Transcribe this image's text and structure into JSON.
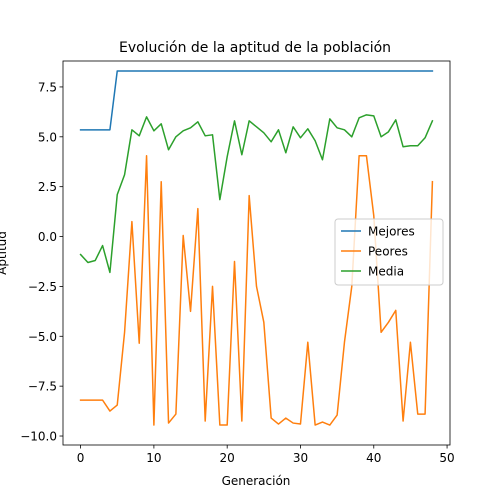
{
  "chart_data": {
    "type": "line",
    "title": "Evolución de la aptitud de la población",
    "xlabel": "Generación",
    "ylabel": "Aptitud",
    "xlim": [
      -2.4,
      50.4
    ],
    "ylim": [
      -10.45,
      8.8
    ],
    "xticks": [
      0,
      10,
      20,
      30,
      40,
      50
    ],
    "xtick_labels": [
      "0",
      "10",
      "20",
      "30",
      "40",
      "50"
    ],
    "yticks": [
      -10.0,
      -7.5,
      -5.0,
      -2.5,
      0.0,
      2.5,
      5.0,
      7.5
    ],
    "ytick_labels": [
      "−10.0",
      "−7.5",
      "−5.0",
      "−2.5",
      "0.0",
      "2.5",
      "5.0",
      "7.5"
    ],
    "grid": false,
    "legend_position": "center-right",
    "x": [
      0,
      1,
      2,
      3,
      4,
      5,
      6,
      7,
      8,
      9,
      10,
      11,
      12,
      13,
      14,
      15,
      16,
      17,
      18,
      19,
      20,
      21,
      22,
      23,
      24,
      25,
      26,
      27,
      28,
      29,
      30,
      31,
      32,
      33,
      34,
      35,
      36,
      37,
      38,
      39,
      40,
      41,
      42,
      43,
      44,
      45,
      46,
      47,
      48
    ],
    "series": [
      {
        "name": "Mejores",
        "color": "#1f77b4",
        "values": [
          5.35,
          5.35,
          5.35,
          5.35,
          5.35,
          8.3,
          8.3,
          8.3,
          8.3,
          8.3,
          8.3,
          8.3,
          8.3,
          8.3,
          8.3,
          8.3,
          8.3,
          8.3,
          8.3,
          8.3,
          8.3,
          8.3,
          8.3,
          8.3,
          8.3,
          8.3,
          8.3,
          8.3,
          8.3,
          8.3,
          8.3,
          8.3,
          8.3,
          8.3,
          8.3,
          8.3,
          8.3,
          8.3,
          8.3,
          8.3,
          8.3,
          8.3,
          8.3,
          8.3,
          8.3,
          8.3,
          8.3,
          8.3,
          8.3
        ]
      },
      {
        "name": "Peores",
        "color": "#ff7f0e",
        "values": [
          -8.2,
          -8.2,
          -8.2,
          -8.2,
          -8.75,
          -8.45,
          -4.8,
          0.75,
          -5.35,
          4.05,
          -9.45,
          2.75,
          -9.35,
          -8.9,
          0.05,
          -3.75,
          1.4,
          -9.25,
          -2.5,
          -9.45,
          -9.45,
          -1.25,
          -9.25,
          2.05,
          -2.5,
          -4.3,
          -9.1,
          -9.4,
          -9.1,
          -9.35,
          -9.4,
          -5.3,
          -9.45,
          -9.3,
          -9.45,
          -8.95,
          -5.3,
          -2.5,
          4.05,
          4.05,
          1.05,
          -4.8,
          -4.3,
          -3.7,
          -9.25,
          -5.3,
          -8.9,
          -8.9,
          2.75
        ]
      },
      {
        "name": "Media",
        "color": "#2ca02c",
        "values": [
          -0.9,
          -1.3,
          -1.2,
          -0.45,
          -1.8,
          2.1,
          3.1,
          5.35,
          5.05,
          6.0,
          5.3,
          5.65,
          4.35,
          5.0,
          5.3,
          5.45,
          5.75,
          5.05,
          5.1,
          1.85,
          4.0,
          5.8,
          4.1,
          5.8,
          5.5,
          5.2,
          4.75,
          5.35,
          4.2,
          5.5,
          4.95,
          5.4,
          4.8,
          3.85,
          5.9,
          5.45,
          5.35,
          5.0,
          5.95,
          6.1,
          6.05,
          5.0,
          5.25,
          5.85,
          4.5,
          4.55,
          4.55,
          4.95,
          5.8
        ]
      }
    ]
  }
}
